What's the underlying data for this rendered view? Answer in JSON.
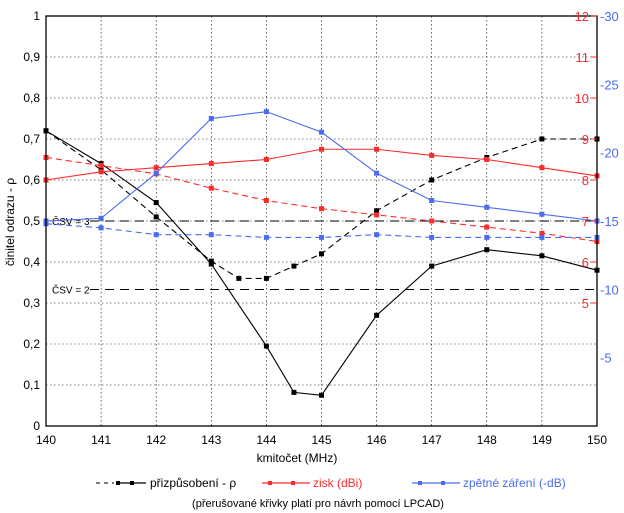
{
  "chart_data": {
    "type": "line",
    "title": "",
    "xlabel": "kmitočet (MHz)",
    "x": [
      140,
      141,
      142,
      143,
      144,
      145,
      146,
      147,
      148,
      149,
      150
    ],
    "xlim": [
      140,
      150
    ],
    "axes": {
      "left": {
        "label": "činitel odrazu - ρ",
        "lim": [
          0,
          1
        ],
        "ticks": [
          "0",
          "0,1",
          "0,2",
          "0,3",
          "0,4",
          "0,5",
          "0,6",
          "0,7",
          "0,8",
          "0,9",
          "1"
        ],
        "color": "#000000"
      },
      "right_inner": {
        "label": "",
        "lim": [
          2,
          12
        ],
        "ticks": [
          "5",
          "6",
          "7",
          "8",
          "9",
          "10",
          "11",
          "12"
        ],
        "tick_values": [
          5,
          6,
          7,
          8,
          9,
          10,
          11,
          12
        ],
        "color": "#ff2a2a"
      },
      "right_outer": {
        "label": "",
        "lim": [
          0,
          -30
        ],
        "ticks": [
          "-5",
          "-10",
          "-15",
          "-20",
          "-25",
          "-30"
        ],
        "tick_values": [
          -5,
          -10,
          -15,
          -20,
          -25,
          -30
        ],
        "color": "#4a6cf0"
      }
    },
    "reference_lines": [
      {
        "label": "ČSV = 3",
        "axis": "left",
        "value": 0.5
      },
      {
        "label": "ČSV = 2",
        "axis": "left",
        "value": 0.333
      }
    ],
    "series": [
      {
        "name": "přizpůsobení - ρ",
        "axis": "left",
        "style": "solid",
        "color": "#000000",
        "x": [
          140,
          141,
          142,
          143,
          144,
          144.5,
          145,
          146,
          147,
          148,
          149,
          150
        ],
        "values": [
          0.72,
          0.64,
          0.545,
          0.395,
          0.195,
          0.082,
          0.075,
          0.27,
          0.39,
          0.43,
          0.415,
          0.38
        ]
      },
      {
        "name": "přizpůsobení - ρ (LPCAD)",
        "axis": "left",
        "style": "dashed",
        "color": "#000000",
        "x": [
          140,
          141,
          142,
          143,
          143.5,
          144,
          144.5,
          145,
          146,
          147,
          148,
          149,
          150
        ],
        "values": [
          0.72,
          0.625,
          0.51,
          0.402,
          0.36,
          0.36,
          0.39,
          0.42,
          0.525,
          0.6,
          0.655,
          0.7,
          0.7
        ]
      },
      {
        "name": "zisk (dBi)",
        "axis": "right_inner",
        "style": "solid",
        "color": "#ff2a2a",
        "values": [
          8,
          8.2,
          8.3,
          8.4,
          8.5,
          8.75,
          8.75,
          8.6,
          8.5,
          8.3,
          8.1
        ]
      },
      {
        "name": "zisk (dBi) (LPCAD)",
        "axis": "right_inner",
        "style": "dashed",
        "color": "#ff2a2a",
        "values": [
          8.55,
          8.35,
          8.15,
          7.8,
          7.5,
          7.3,
          7.15,
          7.0,
          6.85,
          6.7,
          6.5
        ]
      },
      {
        "name": "zpětné záření (-dB)",
        "axis": "right_outer",
        "style": "solid",
        "color": "#4a6cf0",
        "values": [
          -15,
          -15.2,
          -18.5,
          -22.5,
          -23,
          -21.5,
          -18.5,
          -16.5,
          -16,
          -15.5,
          -15
        ]
      },
      {
        "name": "zpětné záření (-dB) (LPCAD)",
        "axis": "right_outer",
        "style": "dashed",
        "color": "#4a6cf0",
        "values": [
          -14.8,
          -14.5,
          -14,
          -14,
          -13.8,
          -13.8,
          -14,
          -13.8,
          -13.8,
          -13.8,
          -13.8
        ]
      }
    ],
    "legend": {
      "position": "bottom",
      "items": [
        {
          "label": "přizpůsobení - ρ",
          "color": "#000000"
        },
        {
          "label": "zisk (dBi)",
          "color": "#ff2a2a"
        },
        {
          "label": "zpětné záření (-dB)",
          "color": "#4a6cf0"
        }
      ],
      "note": "(přerušované křivky platí pro návrh pomocí LPCAD)"
    },
    "grid": true
  }
}
